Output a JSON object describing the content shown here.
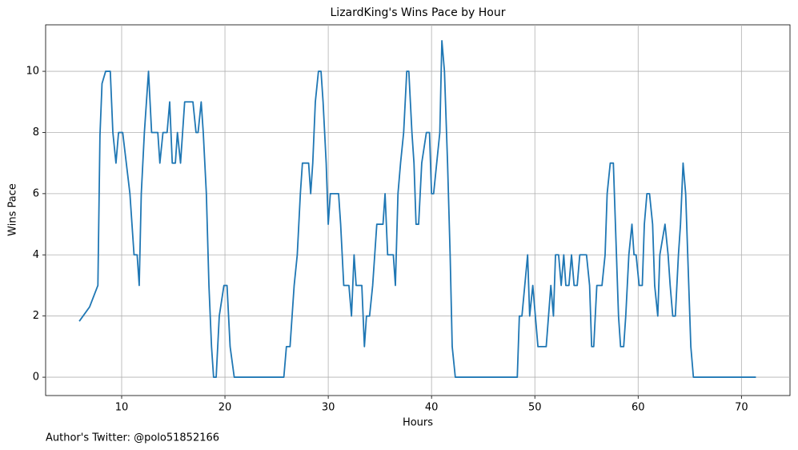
{
  "chart_data": {
    "type": "line",
    "title": "LizardKing's Wins Pace by Hour",
    "x_label": "Hours",
    "y_label": "Wins Pace",
    "annotation": "Author's Twitter: @polo51852166",
    "xlim": [
      2.64,
      74.7
    ],
    "ylim": [
      -0.6,
      11.52
    ],
    "xticks": [
      10,
      20,
      30,
      40,
      50,
      60,
      70
    ],
    "yticks": [
      0,
      2,
      4,
      6,
      8,
      10
    ],
    "grid": true,
    "series": [
      {
        "name": "Wins Pace",
        "color": "#1f77b4",
        "x": [
          5.9,
          6.9,
          7.7,
          7.9,
          8.1,
          8.45,
          8.9,
          9.15,
          9.45,
          9.7,
          10.1,
          10.8,
          11.2,
          11.5,
          11.7,
          11.9,
          12.2,
          12.6,
          12.9,
          13.5,
          13.7,
          14,
          14.4,
          14.65,
          14.9,
          15.2,
          15.4,
          15.7,
          16.1,
          16.9,
          17.2,
          17.4,
          17.7,
          17.9,
          18.2,
          18.45,
          18.7,
          18.9,
          19.15,
          19.45,
          19.9,
          20.2,
          20.5,
          20.9,
          25.7,
          25.95,
          26.3,
          26.7,
          27,
          27.3,
          27.5,
          28.1,
          28.3,
          28.5,
          28.75,
          29.05,
          29.3,
          29.5,
          29.8,
          30,
          30.2,
          31,
          31.2,
          31.5,
          32,
          32.25,
          32.5,
          32.7,
          33.25,
          33.5,
          33.7,
          34,
          34.3,
          34.7,
          35.3,
          35.5,
          35.75,
          36.3,
          36.5,
          36.75,
          37,
          37.3,
          37.6,
          37.8,
          38.1,
          38.3,
          38.5,
          38.75,
          39.05,
          39.5,
          39.8,
          40,
          40.2,
          40.8,
          41,
          41.25,
          41.55,
          41.8,
          42,
          42.3,
          48.3,
          48.5,
          48.75,
          49.3,
          49.5,
          49.8,
          50.3,
          51.1,
          51.55,
          51.8,
          52,
          52.3,
          52.55,
          52.8,
          53,
          53.3,
          53.55,
          53.8,
          54.1,
          54.35,
          55,
          55.3,
          55.5,
          55.7,
          56,
          56.5,
          56.8,
          57,
          57.3,
          57.6,
          57.8,
          58.1,
          58.3,
          58.6,
          58.8,
          59.1,
          59.4,
          59.6,
          59.8,
          60.1,
          60.4,
          60.6,
          60.85,
          61.1,
          61.4,
          61.6,
          61.9,
          62.1,
          62.6,
          62.9,
          63.1,
          63.35,
          63.6,
          63.9,
          64.1,
          64.35,
          64.6,
          64.9,
          65.1,
          65.35,
          71.4
        ],
        "values": [
          1.83,
          2.3,
          3,
          7.9,
          9.6,
          10,
          10,
          8,
          7,
          8,
          8,
          6,
          4,
          4,
          3,
          6,
          8,
          10,
          8,
          8,
          7,
          8,
          8,
          9,
          7,
          7,
          8,
          7,
          9,
          9,
          8,
          8,
          9,
          8,
          6,
          3,
          1,
          0,
          0,
          2,
          3,
          3,
          1,
          0,
          0,
          1,
          1,
          3,
          4,
          6,
          7,
          7,
          6,
          7,
          9,
          10,
          10,
          9,
          7,
          5,
          6,
          6,
          5,
          3,
          3,
          2,
          4,
          3,
          3,
          1,
          2,
          2,
          3,
          5,
          5,
          6,
          4,
          4,
          3,
          6,
          7,
          8,
          10,
          10,
          8,
          7,
          5,
          5,
          7,
          8,
          8,
          6,
          6,
          8,
          11,
          10,
          7,
          4,
          1,
          0,
          0,
          2,
          2,
          4,
          2,
          3,
          1,
          1,
          3,
          2,
          4,
          4,
          3,
          4,
          3,
          3,
          4,
          3,
          3,
          4,
          4,
          3,
          1,
          1,
          3,
          3,
          4,
          6,
          7,
          7,
          5,
          2,
          1,
          1,
          2,
          4,
          5,
          4,
          4,
          3,
          3,
          5,
          6,
          6,
          5,
          3,
          2,
          4,
          5,
          4,
          3,
          2,
          2,
          4,
          5,
          7,
          6,
          3,
          1,
          0,
          0
        ]
      }
    ]
  }
}
